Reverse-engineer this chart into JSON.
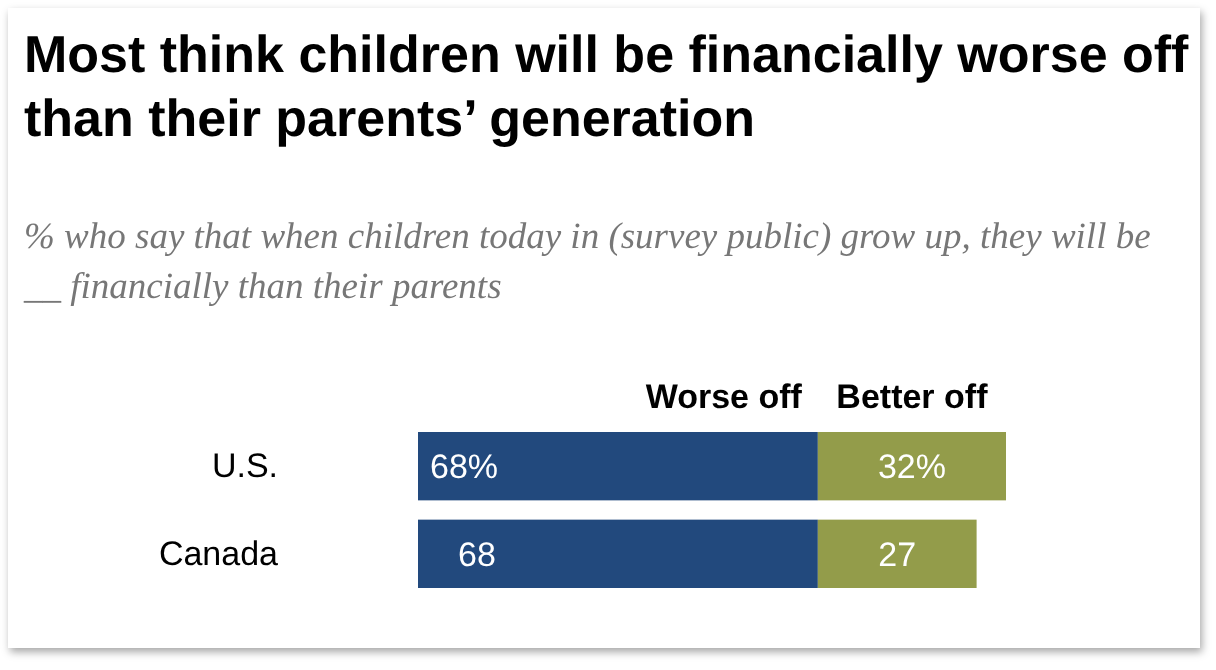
{
  "chart_data": {
    "type": "bar",
    "orientation": "horizontal",
    "stacked": true,
    "title": "Most think children will be financially worse off than their parents’ generation",
    "subtitle": "% who say that when children today in (survey public) grow up, they will be __ financially than their parents",
    "categories": [
      "U.S.",
      "Canada"
    ],
    "series": [
      {
        "name": "Worse off",
        "color": "#22497d",
        "values": [
          68,
          68
        ],
        "value_labels": [
          "68%",
          "68"
        ]
      },
      {
        "name": "Better off",
        "color": "#939c4a",
        "values": [
          32,
          27
        ],
        "value_labels": [
          "32%",
          "27"
        ]
      }
    ],
    "xlim": [
      0,
      100
    ],
    "tick_labels": "y",
    "legend": "top"
  }
}
